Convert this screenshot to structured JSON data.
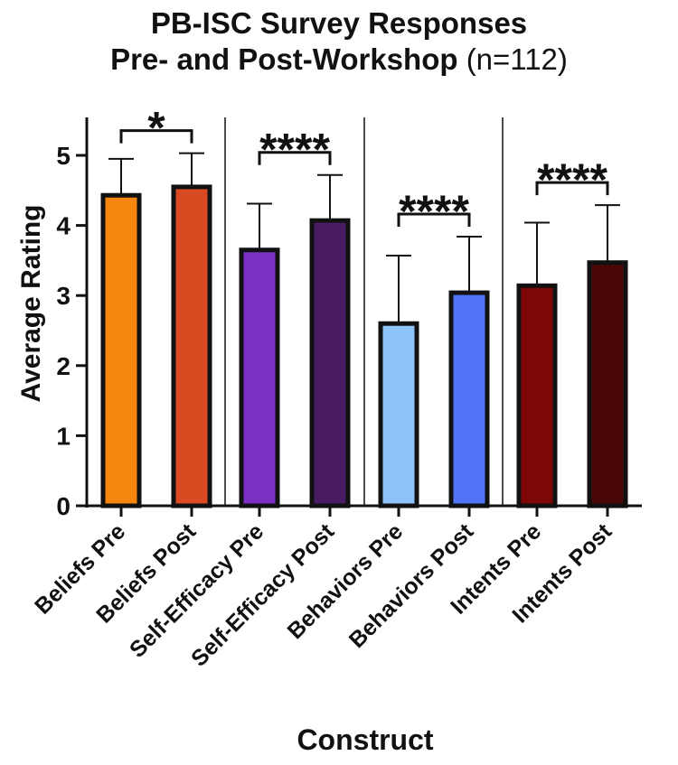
{
  "chart_data": {
    "type": "bar",
    "title_line1": "PB-ISC Survey Responses",
    "title_line2": "Pre- and Post-Workshop",
    "title_n": "(n=112)",
    "xlabel": "Construct",
    "ylabel": "Average Rating",
    "ylim": [
      0,
      5.5
    ],
    "yticks": [
      "0",
      "1",
      "2",
      "3",
      "4",
      "5"
    ],
    "categories": [
      "Beliefs Pre",
      "Beliefs Post",
      "Self-Efficacy Pre",
      "Self-Efficacy Post",
      "Behaviors Pre",
      "Behaviors Post",
      "Intents Pre",
      "Intents Post"
    ],
    "values": [
      4.43,
      4.55,
      3.65,
      4.07,
      2.6,
      3.04,
      3.14,
      3.47
    ],
    "errors": [
      0.52,
      0.48,
      0.66,
      0.65,
      0.97,
      0.8,
      0.9,
      0.82
    ],
    "colors": [
      "#f7860f",
      "#d94a22",
      "#7b30c4",
      "#481b62",
      "#8fc3fb",
      "#5074f5",
      "#7d0707",
      "#4a0707"
    ],
    "significance": [
      {
        "label": "*",
        "pair": [
          0,
          1
        ]
      },
      {
        "label": "****",
        "pair": [
          2,
          3
        ]
      },
      {
        "label": "****",
        "pair": [
          4,
          5
        ]
      },
      {
        "label": "****",
        "pair": [
          6,
          7
        ]
      }
    ]
  }
}
